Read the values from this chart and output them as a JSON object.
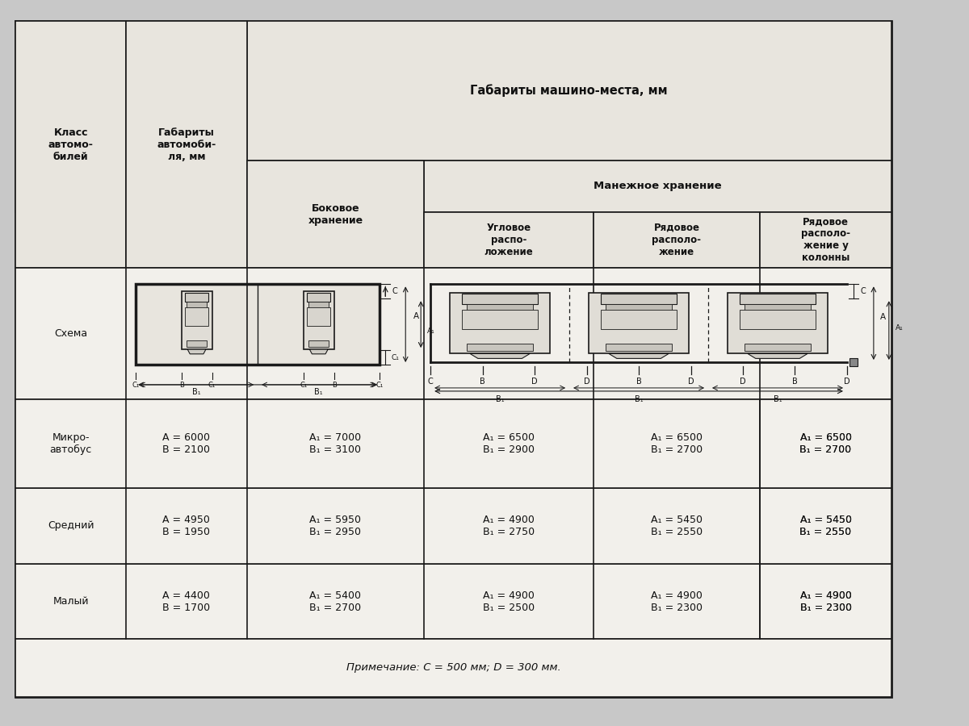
{
  "title": "Габариты машино-места, мм",
  "subtitle_manezh": "Манежное хранение",
  "col0_header": "Класс\nавтомо-\nбилей",
  "col1_header": "Габариты\nавтомоби-\nля, мм",
  "col2_header": "Боковое\nхранение",
  "col3_header": "Угловое\nраспо-\nложение",
  "col4_header": "Рядовое\nрасполо-\nжение",
  "col5_header": "Рядовое\nрасполо-\nжение у\nколонны",
  "schema_label": "Схема",
  "rows": [
    {
      "class": "Малый",
      "dims": "A = 4400\nB = 1700",
      "bokovoe": "A₁ = 5400\nB₁ = 2700",
      "uglovoe": "A₁ = 4900\nB₁ = 2500",
      "ryadovoe": "A₁ = 4900\nB₁ = 2300"
    },
    {
      "class": "Средний",
      "dims": "A = 4950\nB = 1950",
      "bokovoe": "A₁ = 5950\nB₁ = 2950",
      "uglovoe": "A₁ = 4900\nB₁ = 2750",
      "ryadovoe": "A₁ = 5450\nB₁ = 2550"
    },
    {
      "class": "Микро-\nавтобус",
      "dims": "A = 6000\nB = 2100",
      "bokovoe": "A₁ = 7000\nB₁ = 3100",
      "uglovoe": "A₁ = 6500\nB₁ = 2900",
      "ryadovoe_kol": "A₁ = 6500\nB₁ = 2700"
    }
  ],
  "note": "Примечание: C = 500 мм; D = 300 мм.",
  "bg_color": "#c8c8c8",
  "cell_bg": "#f2f0eb",
  "header_bg": "#e8e5de",
  "border_color": "#1a1a1a",
  "text_color": "#111111"
}
